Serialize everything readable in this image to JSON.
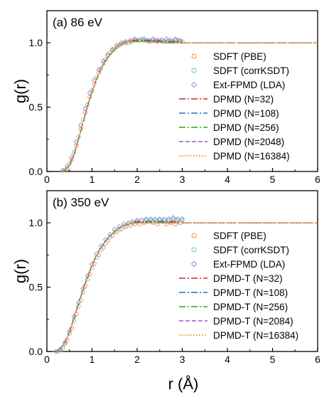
{
  "chart_data": [
    {
      "type": "line",
      "panel_title": "(a) 86 eV",
      "xlabel": "",
      "ylabel": "g(r)",
      "xlim": [
        0,
        6
      ],
      "ylim": [
        0,
        1.25
      ],
      "x_ticks": [
        "0",
        "1",
        "2",
        "3",
        "4",
        "5",
        "6"
      ],
      "y_ticks": [
        "0.0",
        "0.5",
        "1.0"
      ],
      "legend_position": "bottom-right",
      "series": [
        {
          "name": "SDFT (PBE)",
          "kind": "scatter",
          "marker": "circle",
          "color": "#f08c4a",
          "x": [
            0.45,
            0.55,
            0.65,
            0.75,
            0.85,
            0.95,
            1.05,
            1.15,
            1.25,
            1.35,
            1.45,
            1.55,
            1.65,
            1.75,
            1.85,
            1.95,
            2.05,
            2.15,
            2.25,
            2.35,
            2.45,
            2.55,
            2.65,
            2.75,
            2.85,
            2.95
          ],
          "y": [
            0.02,
            0.09,
            0.2,
            0.33,
            0.46,
            0.58,
            0.68,
            0.77,
            0.84,
            0.9,
            0.94,
            0.97,
            0.99,
            1.0,
            1.01,
            1.02,
            1.02,
            1.02,
            1.01,
            1.02,
            1.01,
            1.02,
            1.01,
            1.01,
            1.02,
            1.01
          ]
        },
        {
          "name": "SDFT (corrKSDT)",
          "kind": "scatter",
          "marker": "circle",
          "color": "#6fc7a3",
          "x": [
            0.4,
            0.5,
            0.6,
            0.7,
            0.8,
            0.9,
            1.0,
            1.1,
            1.2,
            1.3,
            1.4,
            1.5,
            1.6,
            1.7,
            1.8,
            1.9,
            2.0,
            2.1,
            2.2,
            2.3,
            2.4,
            2.5,
            2.6,
            2.7,
            2.8,
            2.9,
            3.0
          ],
          "y": [
            0.01,
            0.06,
            0.15,
            0.27,
            0.4,
            0.52,
            0.63,
            0.73,
            0.8,
            0.87,
            0.92,
            0.95,
            0.98,
            1.0,
            1.0,
            1.01,
            1.02,
            1.03,
            1.02,
            1.01,
            1.02,
            1.02,
            1.01,
            1.02,
            1.01,
            1.02,
            1.01
          ]
        },
        {
          "name": "Ext-FPMD (LDA)",
          "kind": "scatter",
          "marker": "diamond",
          "color": "#8d8fd8",
          "x": [
            0.35,
            0.45,
            0.55,
            0.65,
            0.75,
            0.85,
            0.95,
            1.05,
            1.15,
            1.25,
            1.35,
            1.45,
            1.55,
            1.65,
            1.75,
            1.85,
            1.95,
            2.05,
            2.15,
            2.25,
            2.35,
            2.45,
            2.55,
            2.65,
            2.75,
            2.85,
            2.95
          ],
          "y": [
            0.01,
            0.04,
            0.11,
            0.23,
            0.36,
            0.49,
            0.61,
            0.71,
            0.79,
            0.86,
            0.91,
            0.95,
            0.98,
            1.0,
            1.01,
            1.02,
            1.03,
            1.02,
            1.03,
            1.02,
            1.03,
            1.02,
            1.02,
            1.03,
            1.02,
            1.03,
            1.02
          ]
        },
        {
          "name": "DPMD (N=32)",
          "kind": "line",
          "dash": "dashdot",
          "color": "#d62728",
          "x": [
            0.3,
            0.4,
            0.5,
            0.6,
            0.7,
            0.8,
            0.9,
            1.0,
            1.1,
            1.2,
            1.3,
            1.4,
            1.5,
            1.6,
            1.7,
            1.8,
            1.9,
            2.0,
            2.2,
            2.4,
            2.6,
            2.8,
            3.0
          ],
          "y": [
            0.0,
            0.01,
            0.05,
            0.13,
            0.25,
            0.38,
            0.51,
            0.62,
            0.72,
            0.8,
            0.86,
            0.91,
            0.95,
            0.98,
            1.0,
            1.01,
            1.02,
            1.02,
            1.02,
            1.02,
            1.01,
            1.01,
            1.01
          ]
        },
        {
          "name": "DPMD (N=108)",
          "kind": "line",
          "dash": "dashdot",
          "color": "#1f77b4",
          "x": [
            0.3,
            0.4,
            0.5,
            0.6,
            0.7,
            0.8,
            0.9,
            1.0,
            1.1,
            1.2,
            1.3,
            1.4,
            1.5,
            1.6,
            1.7,
            1.8,
            1.9,
            2.0,
            2.2,
            2.4,
            2.6,
            2.8,
            3.0,
            3.5,
            4.0,
            4.5,
            5.0,
            5.5,
            6.0
          ],
          "y": [
            0.0,
            0.01,
            0.05,
            0.13,
            0.25,
            0.38,
            0.51,
            0.62,
            0.72,
            0.8,
            0.86,
            0.91,
            0.95,
            0.98,
            1.0,
            1.01,
            1.01,
            1.02,
            1.02,
            1.01,
            1.01,
            1.01,
            1.0,
            1.0,
            1.0,
            1.0,
            1.0,
            1.0,
            1.0
          ]
        },
        {
          "name": "DPMD (N=256)",
          "kind": "line",
          "dash": "dashdot",
          "color": "#2ca02c",
          "x": [
            0.3,
            0.4,
            0.5,
            0.6,
            0.7,
            0.8,
            0.9,
            1.0,
            1.1,
            1.2,
            1.3,
            1.4,
            1.5,
            1.6,
            1.7,
            1.8,
            1.9,
            2.0,
            2.2,
            2.4,
            2.6,
            2.8,
            3.0,
            3.5,
            4.0,
            4.5,
            5.0,
            5.5,
            6.0
          ],
          "y": [
            0.0,
            0.01,
            0.05,
            0.13,
            0.25,
            0.38,
            0.51,
            0.62,
            0.72,
            0.8,
            0.86,
            0.91,
            0.95,
            0.98,
            1.0,
            1.01,
            1.01,
            1.02,
            1.01,
            1.01,
            1.01,
            1.0,
            1.0,
            1.0,
            1.0,
            1.0,
            1.0,
            1.0,
            1.0
          ]
        },
        {
          "name": "DPMD (N=2048)",
          "kind": "line",
          "dash": "dash",
          "color": "#9b59b6",
          "x": [
            0.3,
            0.4,
            0.5,
            0.6,
            0.7,
            0.8,
            0.9,
            1.0,
            1.1,
            1.2,
            1.3,
            1.4,
            1.5,
            1.6,
            1.7,
            1.8,
            1.9,
            2.0,
            2.2,
            2.4,
            2.6,
            2.8,
            3.0,
            3.5,
            4.0,
            4.5,
            5.0,
            5.5,
            6.0
          ],
          "y": [
            0.0,
            0.01,
            0.05,
            0.13,
            0.25,
            0.38,
            0.51,
            0.62,
            0.72,
            0.8,
            0.86,
            0.91,
            0.95,
            0.98,
            1.0,
            1.01,
            1.01,
            1.01,
            1.01,
            1.01,
            1.0,
            1.0,
            1.0,
            1.0,
            1.0,
            1.0,
            1.0,
            1.0,
            1.0
          ]
        },
        {
          "name": "DPMD (N=16384)",
          "kind": "line",
          "dash": "dot",
          "color": "#f39c12",
          "x": [
            0.3,
            0.4,
            0.5,
            0.6,
            0.7,
            0.8,
            0.9,
            1.0,
            1.1,
            1.2,
            1.3,
            1.4,
            1.5,
            1.6,
            1.7,
            1.8,
            1.9,
            2.0,
            2.2,
            2.4,
            2.6,
            2.8,
            3.0,
            3.5,
            4.0,
            4.5,
            5.0,
            5.5,
            6.0
          ],
          "y": [
            0.0,
            0.01,
            0.05,
            0.13,
            0.25,
            0.38,
            0.51,
            0.62,
            0.72,
            0.8,
            0.86,
            0.91,
            0.95,
            0.98,
            1.0,
            1.01,
            1.01,
            1.01,
            1.01,
            1.0,
            1.0,
            1.0,
            1.0,
            1.0,
            1.0,
            1.0,
            1.0,
            1.0,
            1.0
          ]
        }
      ]
    },
    {
      "type": "line",
      "panel_title": "(b) 350 eV",
      "xlabel": "r (Å)",
      "ylabel": "g(r)",
      "xlim": [
        0,
        6
      ],
      "ylim": [
        0,
        1.25
      ],
      "x_ticks": [
        "0",
        "1",
        "2",
        "3",
        "4",
        "5",
        "6"
      ],
      "y_ticks": [
        "0.0",
        "0.5",
        "1.0"
      ],
      "legend_position": "bottom-right",
      "series": [
        {
          "name": "SDFT (PBE)",
          "kind": "scatter",
          "marker": "circle",
          "color": "#f08c4a",
          "x": [
            0.25,
            0.35,
            0.45,
            0.55,
            0.65,
            0.75,
            0.85,
            0.95,
            1.05,
            1.15,
            1.25,
            1.35,
            1.45,
            1.55,
            1.65,
            1.75,
            1.85,
            1.95,
            2.05,
            2.15,
            2.25,
            2.35,
            2.45,
            2.55,
            2.65,
            2.75,
            2.85,
            2.95
          ],
          "y": [
            0.0,
            0.03,
            0.09,
            0.18,
            0.29,
            0.4,
            0.51,
            0.6,
            0.68,
            0.75,
            0.81,
            0.86,
            0.9,
            0.93,
            0.95,
            0.97,
            0.98,
            0.99,
            0.99,
            1.0,
            1.01,
            1.0,
            0.99,
            1.01,
            0.99,
            1.0,
            0.99,
            1.0
          ]
        },
        {
          "name": "SDFT (corrKSDT)",
          "kind": "scatter",
          "marker": "circle",
          "color": "#6fc7a3",
          "x": [
            0.3,
            0.4,
            0.5,
            0.6,
            0.7,
            0.8,
            0.9,
            1.0,
            1.1,
            1.2,
            1.3,
            1.4,
            1.5,
            1.6,
            1.7,
            1.8,
            1.9,
            2.0,
            2.1,
            2.2,
            2.3,
            2.4,
            2.5,
            2.6,
            2.7,
            2.8,
            2.9,
            3.0
          ],
          "y": [
            0.01,
            0.06,
            0.14,
            0.24,
            0.35,
            0.46,
            0.56,
            0.65,
            0.73,
            0.79,
            0.84,
            0.89,
            0.93,
            0.95,
            0.97,
            0.99,
            1.0,
            1.01,
            1.02,
            1.02,
            1.02,
            1.03,
            1.02,
            1.03,
            1.02,
            1.03,
            1.02,
            1.02
          ]
        },
        {
          "name": "Ext-FPMD (LDA)",
          "kind": "scatter",
          "marker": "diamond",
          "color": "#8d8fd8",
          "x": [
            0.2,
            0.3,
            0.4,
            0.5,
            0.6,
            0.7,
            0.8,
            0.9,
            1.0,
            1.1,
            1.2,
            1.3,
            1.4,
            1.5,
            1.6,
            1.7,
            1.8,
            1.9,
            2.0,
            2.1,
            2.2,
            2.3,
            2.4,
            2.5,
            2.6,
            2.7,
            2.8,
            2.9,
            3.0
          ],
          "y": [
            0.0,
            0.02,
            0.07,
            0.16,
            0.27,
            0.38,
            0.49,
            0.59,
            0.68,
            0.76,
            0.82,
            0.87,
            0.91,
            0.95,
            0.97,
            0.99,
            1.0,
            1.01,
            1.02,
            1.02,
            1.03,
            1.03,
            1.02,
            1.03,
            1.02,
            1.03,
            1.04,
            1.03,
            1.03
          ]
        },
        {
          "name": "DPMD-T (N=32)",
          "kind": "line",
          "dash": "dashdot",
          "color": "#d62728",
          "x": [
            0.2,
            0.3,
            0.4,
            0.5,
            0.6,
            0.7,
            0.8,
            0.9,
            1.0,
            1.1,
            1.2,
            1.3,
            1.4,
            1.5,
            1.6,
            1.7,
            1.8,
            1.9,
            2.0,
            2.2,
            2.4,
            2.6,
            2.8,
            3.0
          ],
          "y": [
            0.0,
            0.02,
            0.07,
            0.15,
            0.26,
            0.37,
            0.48,
            0.58,
            0.67,
            0.75,
            0.81,
            0.86,
            0.9,
            0.93,
            0.96,
            0.98,
            0.99,
            1.0,
            1.01,
            1.01,
            1.01,
            1.01,
            1.01,
            1.01
          ]
        },
        {
          "name": "DPMD-T (N=108)",
          "kind": "line",
          "dash": "dashdot",
          "color": "#1f77b4",
          "x": [
            0.2,
            0.3,
            0.4,
            0.5,
            0.6,
            0.7,
            0.8,
            0.9,
            1.0,
            1.1,
            1.2,
            1.3,
            1.4,
            1.5,
            1.6,
            1.7,
            1.8,
            1.9,
            2.0,
            2.2,
            2.4,
            2.6,
            2.8,
            3.0,
            3.5,
            4.0,
            4.5,
            5.0,
            5.5,
            6.0
          ],
          "y": [
            0.0,
            0.02,
            0.07,
            0.15,
            0.26,
            0.37,
            0.48,
            0.58,
            0.67,
            0.75,
            0.81,
            0.86,
            0.9,
            0.93,
            0.96,
            0.98,
            0.99,
            1.0,
            1.0,
            1.01,
            1.01,
            1.01,
            1.0,
            1.0,
            1.0,
            1.0,
            1.0,
            1.0,
            1.0,
            1.0
          ]
        },
        {
          "name": "DPMD-T (N=256)",
          "kind": "line",
          "dash": "dashdot",
          "color": "#2ca02c",
          "x": [
            0.2,
            0.3,
            0.4,
            0.5,
            0.6,
            0.7,
            0.8,
            0.9,
            1.0,
            1.1,
            1.2,
            1.3,
            1.4,
            1.5,
            1.6,
            1.7,
            1.8,
            1.9,
            2.0,
            2.2,
            2.4,
            2.6,
            2.8,
            3.0,
            3.5,
            4.0,
            4.5,
            5.0,
            5.5,
            6.0
          ],
          "y": [
            0.0,
            0.02,
            0.07,
            0.15,
            0.26,
            0.37,
            0.48,
            0.58,
            0.67,
            0.75,
            0.81,
            0.86,
            0.9,
            0.93,
            0.96,
            0.98,
            0.99,
            1.0,
            1.0,
            1.01,
            1.01,
            1.0,
            1.0,
            1.0,
            1.0,
            1.0,
            1.0,
            1.0,
            1.0,
            1.0
          ]
        },
        {
          "name": "DPMD-T (N=2084)",
          "kind": "line",
          "dash": "dash",
          "color": "#9b59b6",
          "x": [
            0.2,
            0.3,
            0.4,
            0.5,
            0.6,
            0.7,
            0.8,
            0.9,
            1.0,
            1.1,
            1.2,
            1.3,
            1.4,
            1.5,
            1.6,
            1.7,
            1.8,
            1.9,
            2.0,
            2.2,
            2.4,
            2.6,
            2.8,
            3.0,
            3.5,
            4.0,
            4.5,
            5.0,
            5.5,
            6.0
          ],
          "y": [
            0.0,
            0.02,
            0.07,
            0.15,
            0.26,
            0.37,
            0.48,
            0.58,
            0.67,
            0.75,
            0.81,
            0.86,
            0.9,
            0.93,
            0.96,
            0.98,
            0.99,
            1.0,
            1.0,
            1.0,
            1.0,
            1.0,
            1.0,
            1.0,
            1.0,
            1.0,
            1.0,
            1.0,
            1.0,
            1.0
          ]
        },
        {
          "name": "DPMD-T (N=16384)",
          "kind": "line",
          "dash": "dot",
          "color": "#f39c12",
          "x": [
            0.2,
            0.3,
            0.4,
            0.5,
            0.6,
            0.7,
            0.8,
            0.9,
            1.0,
            1.1,
            1.2,
            1.3,
            1.4,
            1.5,
            1.6,
            1.7,
            1.8,
            1.9,
            2.0,
            2.2,
            2.4,
            2.6,
            2.8,
            3.0,
            3.5,
            4.0,
            4.5,
            5.0,
            5.5,
            6.0
          ],
          "y": [
            0.0,
            0.02,
            0.07,
            0.15,
            0.26,
            0.37,
            0.48,
            0.58,
            0.67,
            0.75,
            0.81,
            0.86,
            0.9,
            0.93,
            0.96,
            0.98,
            0.99,
            1.0,
            1.0,
            1.0,
            1.0,
            1.0,
            1.0,
            1.0,
            1.0,
            1.0,
            1.0,
            1.0,
            1.0,
            1.0
          ]
        }
      ]
    }
  ]
}
